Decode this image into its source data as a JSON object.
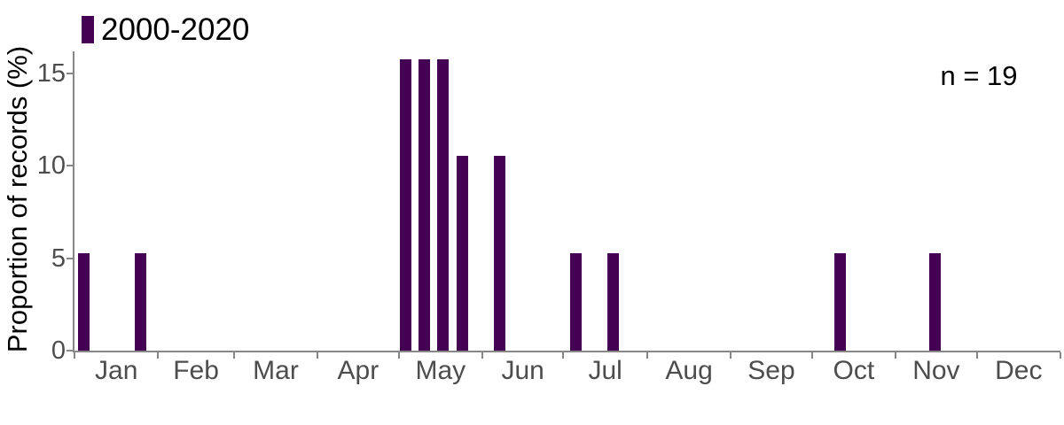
{
  "colors": {
    "bar": "#440154",
    "axis": "#878787",
    "tick_label": "#4d4d4d",
    "text": "#000000",
    "background": "#ffffff"
  },
  "chart_data": {
    "type": "bar",
    "title": "",
    "xlabel": "",
    "ylabel": "Proportion of records (%)",
    "annotation": "n = 19",
    "n": 19,
    "legend": [
      {
        "label": "2000-2020",
        "color": "#440154"
      }
    ],
    "legend_position": "top-left",
    "grid": false,
    "y_axis": {
      "ticks": [
        0,
        5,
        10,
        15
      ],
      "max": 16.2
    },
    "x_axis": {
      "unit": "weekly bins over day of year",
      "month_labels": [
        "Jan",
        "Feb",
        "Mar",
        "Apr",
        "May",
        "Jun",
        "Jul",
        "Aug",
        "Sep",
        "Oct",
        "Nov",
        "Dec"
      ],
      "month_start_days": [
        0,
        31,
        59,
        90,
        120,
        151,
        181,
        212,
        243,
        273,
        304,
        334,
        365
      ]
    },
    "bars": [
      {
        "week": 1,
        "value": 5.26
      },
      {
        "week": 4,
        "value": 5.26
      },
      {
        "week": 18,
        "value": 15.79
      },
      {
        "week": 19,
        "value": 15.79
      },
      {
        "week": 20,
        "value": 15.79
      },
      {
        "week": 21,
        "value": 10.53
      },
      {
        "week": 23,
        "value": 10.53
      },
      {
        "week": 27,
        "value": 5.26
      },
      {
        "week": 29,
        "value": 5.26
      },
      {
        "week": 41,
        "value": 5.26
      },
      {
        "week": 46,
        "value": 5.26
      }
    ]
  }
}
